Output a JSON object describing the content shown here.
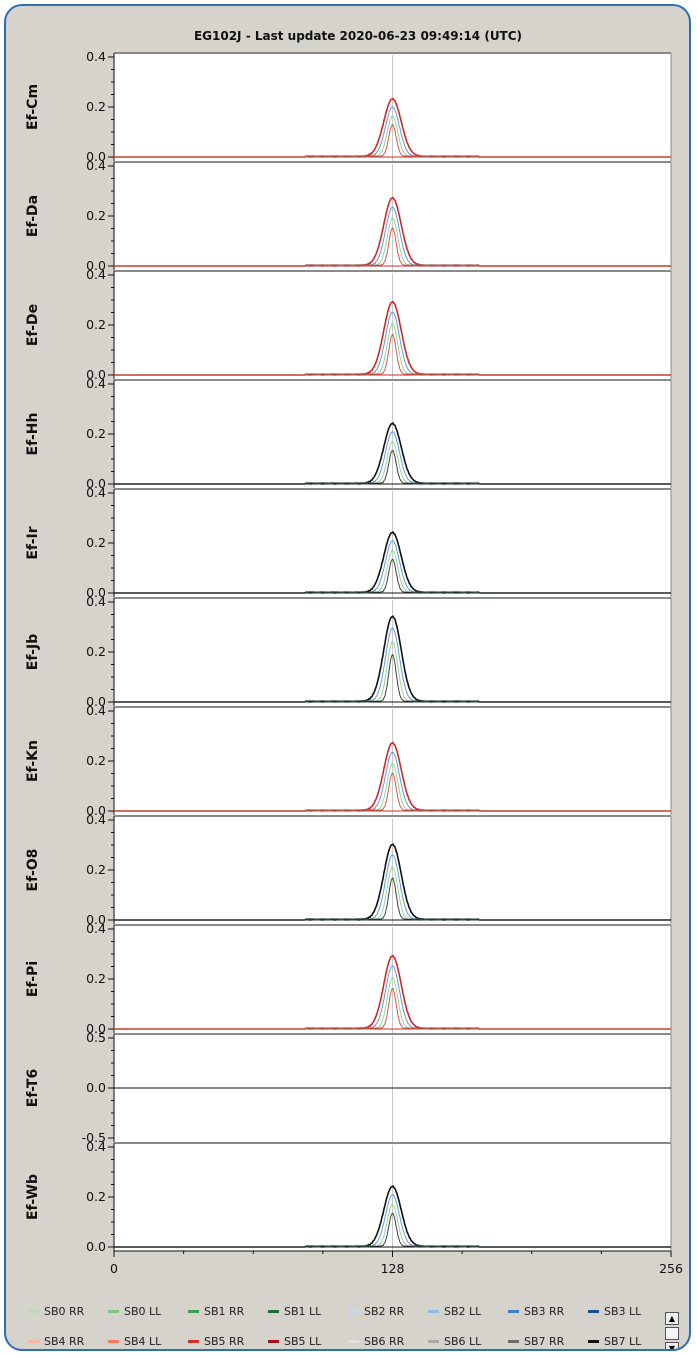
{
  "title": "EG102J - Last update 2020-06-23 09:49:14 (UTC)",
  "chart_data": {
    "type": "line",
    "x_ticks": [
      "0",
      "128",
      "256"
    ],
    "xlim": [
      0,
      256
    ],
    "center_marker_x": 128,
    "panels": [
      {
        "station": "Ef-Cm",
        "ylim": [
          0,
          0.4
        ],
        "y_ticks": [
          "0.0",
          "0.2",
          "0.4"
        ],
        "peak": 0.23,
        "peak_color": "#cc2a2a"
      },
      {
        "station": "Ef-Da",
        "ylim": [
          0,
          0.4
        ],
        "y_ticks": [
          "0.0",
          "0.2",
          "0.4"
        ],
        "peak": 0.27,
        "peak_color": "#cc2a2a"
      },
      {
        "station": "Ef-De",
        "ylim": [
          0,
          0.4
        ],
        "y_ticks": [
          "0.0",
          "0.2",
          "0.4"
        ],
        "peak": 0.29,
        "peak_color": "#cc2a2a"
      },
      {
        "station": "Ef-Hh",
        "ylim": [
          0,
          0.4
        ],
        "y_ticks": [
          "0.0",
          "0.2",
          "0.4"
        ],
        "peak": 0.24,
        "peak_color": "#111111"
      },
      {
        "station": "Ef-Ir",
        "ylim": [
          0,
          0.4
        ],
        "y_ticks": [
          "0.0",
          "0.2",
          "0.4"
        ],
        "peak": 0.24,
        "peak_color": "#111111"
      },
      {
        "station": "Ef-Jb",
        "ylim": [
          0,
          0.4
        ],
        "y_ticks": [
          "0.0",
          "0.2",
          "0.4"
        ],
        "peak": 0.34,
        "peak_color": "#111111"
      },
      {
        "station": "Ef-Kn",
        "ylim": [
          0,
          0.4
        ],
        "y_ticks": [
          "0.0",
          "0.2",
          "0.4"
        ],
        "peak": 0.27,
        "peak_color": "#cc2a2a"
      },
      {
        "station": "Ef-O8",
        "ylim": [
          0,
          0.4
        ],
        "y_ticks": [
          "0.0",
          "0.2",
          "0.4"
        ],
        "peak": 0.3,
        "peak_color": "#111111"
      },
      {
        "station": "Ef-Pi",
        "ylim": [
          0,
          0.4
        ],
        "y_ticks": [
          "0.0",
          "0.2",
          "0.4"
        ],
        "peak": 0.29,
        "peak_color": "#cc2a2a"
      },
      {
        "station": "Ef-T6",
        "ylim": [
          -0.5,
          0.5
        ],
        "y_ticks": [
          "-0.5",
          "0.0",
          "0.5"
        ],
        "peak": 0.0,
        "peak_color": "#111111"
      },
      {
        "station": "Ef-Wb",
        "ylim": [
          0,
          0.4
        ],
        "y_ticks": [
          "0.0",
          "0.2",
          "0.4"
        ],
        "peak": 0.24,
        "peak_color": "#111111"
      }
    ],
    "legend": [
      {
        "name": "SB0 RR",
        "color": "#b8dcb0"
      },
      {
        "name": "SB0 LL",
        "color": "#7fc97f"
      },
      {
        "name": "SB1 RR",
        "color": "#3aa14a"
      },
      {
        "name": "SB1 LL",
        "color": "#1f6b2d"
      },
      {
        "name": "SB2 RR",
        "color": "#c6dbef"
      },
      {
        "name": "SB2 LL",
        "color": "#8fbce0"
      },
      {
        "name": "SB3 RR",
        "color": "#3d7fc4"
      },
      {
        "name": "SB3 LL",
        "color": "#1a4f8f"
      },
      {
        "name": "SB4 RR",
        "color": "#f6b7a5"
      },
      {
        "name": "SB4 LL",
        "color": "#ef7a5e"
      },
      {
        "name": "SB5 RR",
        "color": "#d2302e"
      },
      {
        "name": "SB5 LL",
        "color": "#a3111c"
      },
      {
        "name": "SB6 RR",
        "color": "#e0e0e0"
      },
      {
        "name": "SB6 LL",
        "color": "#a8a8a8"
      },
      {
        "name": "SB7 RR",
        "color": "#6b6b6b"
      },
      {
        "name": "SB7 LL",
        "color": "#111111"
      }
    ]
  },
  "scroll": {
    "up": "▲",
    "down": "▼"
  }
}
